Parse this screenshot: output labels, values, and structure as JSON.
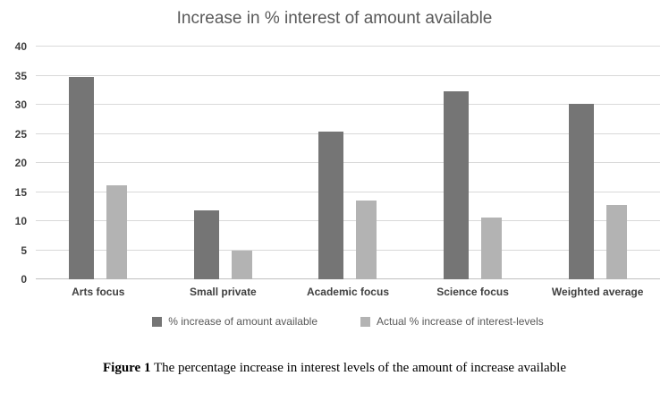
{
  "title": "Increase in % interest of amount available",
  "caption": {
    "label": "Figure 1",
    "text": " The percentage increase in interest levels of the amount of increase available"
  },
  "colors": {
    "series1": "#757575",
    "series2": "#b3b3b3",
    "grid": "#d9d9d9",
    "axis_text": "#404040",
    "title_text": "#595959"
  },
  "chart_data": {
    "type": "bar",
    "title": "Increase in % interest of amount available",
    "categories": [
      "Arts focus",
      "Small private",
      "Academic focus",
      "Science focus",
      "Weighted average"
    ],
    "series": [
      {
        "name": "% increase of amount available",
        "color": "#757575",
        "values": [
          34.8,
          11.8,
          25.4,
          32.3,
          30.2
        ]
      },
      {
        "name": "Actual % increase of interest-levels",
        "color": "#b3b3b3",
        "values": [
          16.2,
          5.0,
          13.5,
          10.6,
          12.7
        ]
      }
    ],
    "xlabel": "",
    "ylabel": "",
    "ylim": [
      0,
      40
    ],
    "ytick_step": 5,
    "grid": true,
    "legend_position": "bottom"
  }
}
